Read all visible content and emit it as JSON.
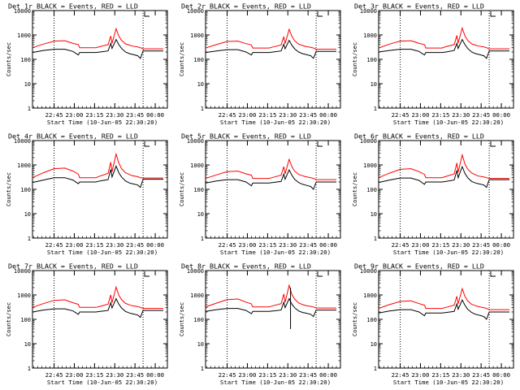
{
  "figure": {
    "ylabel": "Counts/sec",
    "xlabel": "Start Time (10-Jun-05 22:30:20)",
    "xticks": [
      "22:45",
      "23:00",
      "23:15",
      "23:30",
      "23:45",
      "00:00"
    ],
    "yticks": [
      "1",
      "10",
      "100",
      "1000",
      "10000"
    ],
    "colors": {
      "events": "#000000",
      "lld": "#ff0000",
      "marker": "#000000"
    }
  },
  "chart_data": [
    {
      "type": "line",
      "title": "Det 1r BLACK = Events, RED = LLD",
      "x_unit": "minutes after start",
      "xlim": [
        0,
        100
      ],
      "ylim": [
        1,
        10000
      ],
      "yscale": "log",
      "vlines": [
        16,
        82
      ],
      "x": [
        0,
        8,
        16,
        24,
        30,
        34,
        35,
        40,
        47,
        50,
        56,
        58,
        59,
        62,
        64,
        66,
        69,
        72,
        74,
        78,
        80,
        82,
        86,
        92,
        97
      ],
      "series": [
        {
          "name": "Events",
          "values": [
            190,
            230,
            260,
            260,
            210,
            150,
            190,
            190,
            190,
            200,
            220,
            450,
            280,
            650,
            400,
            280,
            200,
            170,
            160,
            140,
            110,
            220,
            220,
            220,
            220
          ]
        },
        {
          "name": "LLD",
          "values": [
            300,
            420,
            560,
            580,
            450,
            400,
            300,
            300,
            300,
            330,
            400,
            900,
            450,
            1800,
            900,
            600,
            430,
            380,
            350,
            320,
            300,
            270,
            270,
            270,
            270
          ]
        }
      ]
    },
    {
      "type": "line",
      "title": "Det 2r BLACK = Events, RED = LLD",
      "x_unit": "minutes after start",
      "xlim": [
        0,
        100
      ],
      "ylim": [
        1,
        10000
      ],
      "yscale": "log",
      "vlines": [
        16,
        82
      ],
      "x": [
        0,
        8,
        16,
        24,
        30,
        34,
        35,
        40,
        47,
        50,
        56,
        58,
        59,
        62,
        64,
        66,
        69,
        72,
        74,
        78,
        80,
        82,
        86,
        92,
        97
      ],
      "series": [
        {
          "name": "Events",
          "values": [
            190,
            220,
            250,
            250,
            200,
            150,
            190,
            190,
            190,
            200,
            220,
            420,
            270,
            600,
            380,
            270,
            200,
            170,
            160,
            140,
            110,
            210,
            210,
            210,
            210
          ]
        },
        {
          "name": "LLD",
          "values": [
            290,
            400,
            540,
            560,
            440,
            390,
            290,
            290,
            290,
            320,
            390,
            850,
            440,
            1700,
            880,
            580,
            420,
            370,
            340,
            310,
            290,
            260,
            260,
            260,
            260
          ]
        }
      ]
    },
    {
      "type": "line",
      "title": "Det 3r BLACK = Events, RED = LLD",
      "x_unit": "minutes after start",
      "xlim": [
        0,
        100
      ],
      "ylim": [
        1,
        10000
      ],
      "yscale": "log",
      "vlines": [
        16,
        82
      ],
      "x": [
        0,
        8,
        16,
        24,
        30,
        34,
        35,
        40,
        47,
        50,
        56,
        58,
        59,
        62,
        64,
        66,
        69,
        72,
        74,
        78,
        80,
        82,
        86,
        92,
        97
      ],
      "series": [
        {
          "name": "Events",
          "values": [
            200,
            230,
            260,
            260,
            210,
            150,
            190,
            190,
            190,
            200,
            230,
            450,
            280,
            650,
            400,
            280,
            200,
            170,
            160,
            140,
            110,
            220,
            220,
            220,
            220
          ]
        },
        {
          "name": "LLD",
          "values": [
            290,
            420,
            560,
            580,
            450,
            400,
            290,
            290,
            290,
            330,
            400,
            950,
            460,
            1900,
            920,
            600,
            430,
            380,
            350,
            320,
            300,
            270,
            270,
            270,
            270
          ]
        }
      ]
    },
    {
      "type": "line",
      "title": "Det 4r BLACK = Events, RED = LLD",
      "x_unit": "minutes after start",
      "xlim": [
        0,
        100
      ],
      "ylim": [
        1,
        10000
      ],
      "yscale": "log",
      "vlines": [
        16,
        82
      ],
      "x": [
        0,
        8,
        16,
        24,
        30,
        34,
        35,
        40,
        47,
        50,
        56,
        58,
        59,
        62,
        64,
        66,
        69,
        72,
        74,
        78,
        80,
        82,
        86,
        92,
        97
      ],
      "series": [
        {
          "name": "Events",
          "values": [
            190,
            240,
            300,
            300,
            240,
            170,
            200,
            200,
            200,
            220,
            250,
            650,
            320,
            900,
            480,
            320,
            220,
            180,
            170,
            150,
            120,
            260,
            260,
            260,
            260
          ]
        },
        {
          "name": "LLD",
          "values": [
            300,
            480,
            700,
            740,
            560,
            420,
            300,
            300,
            300,
            350,
            450,
            1300,
            520,
            2800,
            1200,
            700,
            480,
            400,
            360,
            330,
            300,
            290,
            290,
            290,
            290
          ]
        }
      ]
    },
    {
      "type": "line",
      "title": "Det 5r BLACK = Events, RED = LLD",
      "x_unit": "minutes after start",
      "xlim": [
        0,
        100
      ],
      "ylim": [
        1,
        10000
      ],
      "yscale": "log",
      "vlines": [
        16,
        82
      ],
      "x": [
        0,
        8,
        16,
        24,
        30,
        34,
        35,
        40,
        47,
        50,
        56,
        58,
        59,
        62,
        64,
        66,
        69,
        72,
        74,
        78,
        80,
        82,
        86,
        92,
        97
      ],
      "series": [
        {
          "name": "Events",
          "values": [
            180,
            220,
            250,
            250,
            200,
            140,
            180,
            180,
            180,
            190,
            210,
            420,
            260,
            620,
            380,
            260,
            190,
            160,
            150,
            130,
            100,
            200,
            200,
            200,
            200
          ]
        },
        {
          "name": "LLD",
          "values": [
            280,
            390,
            530,
            560,
            430,
            380,
            280,
            280,
            280,
            310,
            380,
            850,
            430,
            1700,
            860,
            560,
            410,
            360,
            330,
            300,
            280,
            250,
            250,
            250,
            250
          ]
        }
      ]
    },
    {
      "type": "line",
      "title": "Det 6r BLACK = Events, RED = LLD",
      "x_unit": "minutes after start",
      "xlim": [
        0,
        100
      ],
      "ylim": [
        1,
        10000
      ],
      "yscale": "log",
      "vlines": [
        16,
        82
      ],
      "x": [
        0,
        8,
        16,
        24,
        30,
        34,
        35,
        40,
        47,
        50,
        56,
        58,
        59,
        62,
        64,
        66,
        69,
        72,
        74,
        78,
        80,
        82,
        86,
        92,
        97
      ],
      "series": [
        {
          "name": "Events",
          "values": [
            190,
            240,
            290,
            290,
            230,
            160,
            200,
            200,
            200,
            210,
            240,
            600,
            300,
            850,
            450,
            300,
            210,
            180,
            170,
            150,
            120,
            250,
            250,
            250,
            250
          ]
        },
        {
          "name": "LLD",
          "values": [
            300,
            460,
            660,
            700,
            530,
            410,
            300,
            300,
            300,
            340,
            430,
            1200,
            500,
            2600,
            1100,
            680,
            470,
            390,
            350,
            320,
            300,
            280,
            280,
            280,
            280
          ]
        }
      ]
    },
    {
      "type": "line",
      "title": "Det 7r BLACK = Events, RED = LLD",
      "x_unit": "minutes after start",
      "xlim": [
        0,
        100
      ],
      "ylim": [
        1,
        10000
      ],
      "yscale": "log",
      "vlines": [
        16,
        82
      ],
      "x": [
        0,
        8,
        16,
        24,
        30,
        34,
        35,
        40,
        47,
        50,
        56,
        58,
        59,
        62,
        64,
        66,
        69,
        72,
        74,
        78,
        80,
        82,
        86,
        92,
        97
      ],
      "series": [
        {
          "name": "Events",
          "values": [
            200,
            240,
            270,
            270,
            220,
            160,
            200,
            200,
            200,
            210,
            230,
            480,
            290,
            700,
            420,
            290,
            210,
            180,
            170,
            150,
            120,
            230,
            230,
            230,
            230
          ]
        },
        {
          "name": "LLD",
          "values": [
            310,
            440,
            600,
            630,
            480,
            410,
            310,
            310,
            310,
            340,
            420,
            1000,
            480,
            2100,
            980,
            640,
            450,
            390,
            360,
            330,
            310,
            280,
            280,
            280,
            280
          ]
        }
      ]
    },
    {
      "type": "line",
      "title": "Det 8r BLACK = Events, RED = LLD",
      "x_unit": "minutes after start",
      "xlim": [
        0,
        100
      ],
      "ylim": [
        1,
        10000
      ],
      "yscale": "log",
      "vlines": [
        16,
        82
      ],
      "spike_x": 63,
      "spike_range": [
        40,
        2000
      ],
      "x": [
        0,
        8,
        16,
        24,
        30,
        34,
        35,
        40,
        47,
        50,
        56,
        58,
        59,
        62,
        64,
        66,
        69,
        72,
        74,
        78,
        80,
        82,
        86,
        92,
        97
      ],
      "series": [
        {
          "name": "Events",
          "values": [
            210,
            250,
            280,
            280,
            230,
            170,
            210,
            210,
            210,
            220,
            240,
            500,
            300,
            700,
            420,
            300,
            220,
            190,
            180,
            160,
            130,
            240,
            240,
            240,
            240
          ]
        },
        {
          "name": "LLD",
          "values": [
            320,
            460,
            640,
            680,
            510,
            430,
            320,
            320,
            320,
            360,
            440,
            1100,
            500,
            2500,
            1050,
            680,
            470,
            400,
            370,
            340,
            320,
            290,
            290,
            290,
            290
          ]
        }
      ]
    },
    {
      "type": "line",
      "title": "Det 9r BLACK = Events, RED = LLD",
      "x_unit": "minutes after start",
      "xlim": [
        0,
        100
      ],
      "ylim": [
        1,
        10000
      ],
      "yscale": "log",
      "vlines": [
        16,
        82
      ],
      "x": [
        0,
        8,
        16,
        24,
        30,
        34,
        35,
        40,
        47,
        50,
        56,
        58,
        59,
        62,
        64,
        66,
        69,
        72,
        74,
        78,
        80,
        82,
        86,
        92,
        97
      ],
      "series": [
        {
          "name": "Events",
          "values": [
            180,
            220,
            250,
            250,
            200,
            140,
            180,
            180,
            180,
            190,
            210,
            430,
            260,
            620,
            380,
            260,
            190,
            160,
            150,
            130,
            100,
            200,
            200,
            200,
            200
          ]
        },
        {
          "name": "LLD",
          "values": [
            280,
            400,
            540,
            570,
            440,
            380,
            280,
            280,
            280,
            310,
            380,
            880,
            440,
            1800,
            880,
            570,
            410,
            360,
            330,
            300,
            280,
            250,
            250,
            250,
            250
          ]
        }
      ]
    }
  ]
}
